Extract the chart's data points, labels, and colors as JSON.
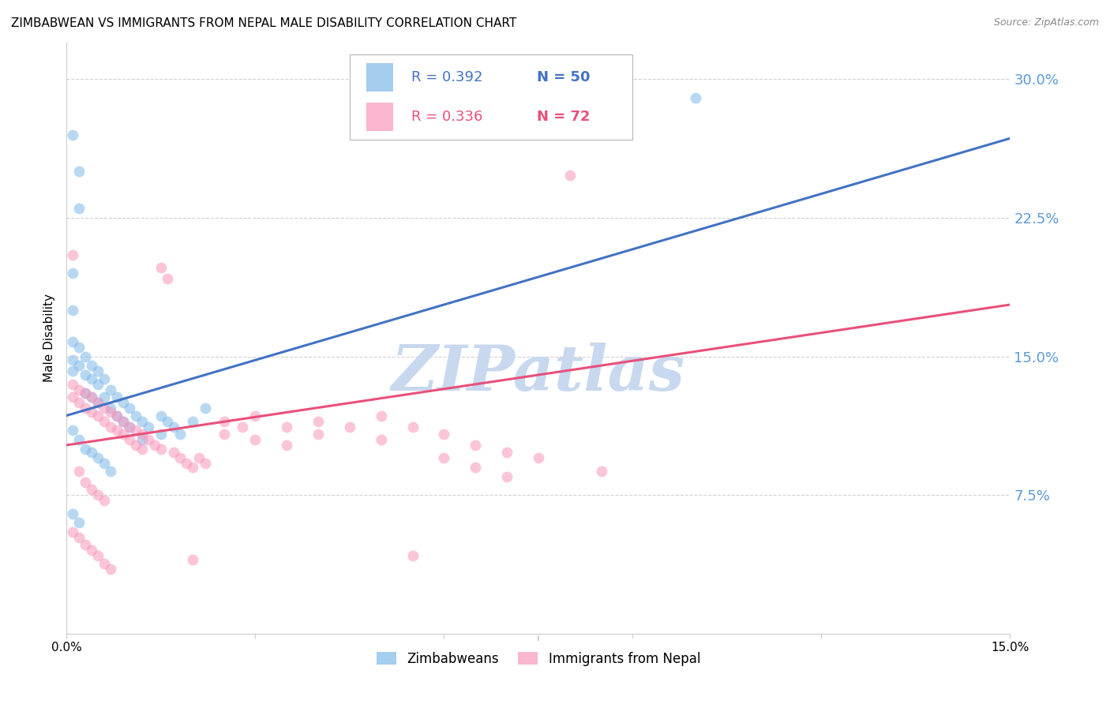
{
  "title": "ZIMBABWEAN VS IMMIGRANTS FROM NEPAL MALE DISABILITY CORRELATION CHART",
  "source": "Source: ZipAtlas.com",
  "ylabel": "Male Disability",
  "ytick_labels": [
    "7.5%",
    "15.0%",
    "22.5%",
    "30.0%"
  ],
  "ytick_values": [
    0.075,
    0.15,
    0.225,
    0.3
  ],
  "xlim": [
    0.0,
    0.15
  ],
  "ylim": [
    0.0,
    0.32
  ],
  "legend_blue_r": "R = 0.392",
  "legend_blue_n": "N = 50",
  "legend_pink_r": "R = 0.336",
  "legend_pink_n": "N = 72",
  "legend_label_blue": "Zimbabweans",
  "legend_label_pink": "Immigrants from Nepal",
  "blue_color": "#7fb8e8",
  "pink_color": "#f896bb",
  "line_blue_color": "#4472c4",
  "line_pink_color": "#e8507a",
  "watermark": "ZIPatlas",
  "blue_scatter": [
    [
      0.001,
      0.27
    ],
    [
      0.002,
      0.25
    ],
    [
      0.002,
      0.23
    ],
    [
      0.001,
      0.195
    ],
    [
      0.001,
      0.175
    ],
    [
      0.001,
      0.158
    ],
    [
      0.001,
      0.148
    ],
    [
      0.001,
      0.142
    ],
    [
      0.002,
      0.155
    ],
    [
      0.002,
      0.145
    ],
    [
      0.003,
      0.15
    ],
    [
      0.003,
      0.14
    ],
    [
      0.003,
      0.13
    ],
    [
      0.004,
      0.145
    ],
    [
      0.004,
      0.138
    ],
    [
      0.004,
      0.128
    ],
    [
      0.005,
      0.142
    ],
    [
      0.005,
      0.135
    ],
    [
      0.005,
      0.125
    ],
    [
      0.006,
      0.138
    ],
    [
      0.006,
      0.128
    ],
    [
      0.007,
      0.132
    ],
    [
      0.007,
      0.122
    ],
    [
      0.008,
      0.128
    ],
    [
      0.008,
      0.118
    ],
    [
      0.009,
      0.125
    ],
    [
      0.009,
      0.115
    ],
    [
      0.01,
      0.122
    ],
    [
      0.01,
      0.112
    ],
    [
      0.011,
      0.118
    ],
    [
      0.012,
      0.115
    ],
    [
      0.012,
      0.105
    ],
    [
      0.013,
      0.112
    ],
    [
      0.015,
      0.118
    ],
    [
      0.015,
      0.108
    ],
    [
      0.016,
      0.115
    ],
    [
      0.017,
      0.112
    ],
    [
      0.018,
      0.108
    ],
    [
      0.02,
      0.115
    ],
    [
      0.022,
      0.122
    ],
    [
      0.001,
      0.11
    ],
    [
      0.002,
      0.105
    ],
    [
      0.003,
      0.1
    ],
    [
      0.004,
      0.098
    ],
    [
      0.005,
      0.095
    ],
    [
      0.006,
      0.092
    ],
    [
      0.007,
      0.088
    ],
    [
      0.001,
      0.065
    ],
    [
      0.002,
      0.06
    ],
    [
      0.1,
      0.29
    ]
  ],
  "pink_scatter": [
    [
      0.001,
      0.135
    ],
    [
      0.001,
      0.128
    ],
    [
      0.002,
      0.132
    ],
    [
      0.002,
      0.125
    ],
    [
      0.003,
      0.13
    ],
    [
      0.003,
      0.122
    ],
    [
      0.004,
      0.128
    ],
    [
      0.004,
      0.12
    ],
    [
      0.005,
      0.125
    ],
    [
      0.005,
      0.118
    ],
    [
      0.006,
      0.122
    ],
    [
      0.006,
      0.115
    ],
    [
      0.007,
      0.12
    ],
    [
      0.007,
      0.112
    ],
    [
      0.008,
      0.118
    ],
    [
      0.008,
      0.11
    ],
    [
      0.009,
      0.115
    ],
    [
      0.009,
      0.108
    ],
    [
      0.01,
      0.112
    ],
    [
      0.01,
      0.105
    ],
    [
      0.011,
      0.11
    ],
    [
      0.011,
      0.102
    ],
    [
      0.012,
      0.108
    ],
    [
      0.012,
      0.1
    ],
    [
      0.013,
      0.105
    ],
    [
      0.014,
      0.102
    ],
    [
      0.015,
      0.1
    ],
    [
      0.015,
      0.198
    ],
    [
      0.016,
      0.192
    ],
    [
      0.001,
      0.205
    ],
    [
      0.017,
      0.098
    ],
    [
      0.018,
      0.095
    ],
    [
      0.019,
      0.092
    ],
    [
      0.02,
      0.09
    ],
    [
      0.021,
      0.095
    ],
    [
      0.022,
      0.092
    ],
    [
      0.025,
      0.115
    ],
    [
      0.025,
      0.108
    ],
    [
      0.028,
      0.112
    ],
    [
      0.03,
      0.118
    ],
    [
      0.03,
      0.105
    ],
    [
      0.035,
      0.112
    ],
    [
      0.035,
      0.102
    ],
    [
      0.04,
      0.115
    ],
    [
      0.04,
      0.108
    ],
    [
      0.045,
      0.112
    ],
    [
      0.05,
      0.118
    ],
    [
      0.05,
      0.105
    ],
    [
      0.055,
      0.112
    ],
    [
      0.06,
      0.108
    ],
    [
      0.06,
      0.095
    ],
    [
      0.065,
      0.102
    ],
    [
      0.065,
      0.09
    ],
    [
      0.07,
      0.098
    ],
    [
      0.07,
      0.085
    ],
    [
      0.075,
      0.095
    ],
    [
      0.08,
      0.248
    ],
    [
      0.085,
      0.088
    ],
    [
      0.002,
      0.088
    ],
    [
      0.003,
      0.082
    ],
    [
      0.004,
      0.078
    ],
    [
      0.005,
      0.075
    ],
    [
      0.006,
      0.072
    ],
    [
      0.055,
      0.042
    ],
    [
      0.02,
      0.04
    ],
    [
      0.001,
      0.055
    ],
    [
      0.002,
      0.052
    ],
    [
      0.003,
      0.048
    ],
    [
      0.004,
      0.045
    ],
    [
      0.005,
      0.042
    ],
    [
      0.006,
      0.038
    ],
    [
      0.007,
      0.035
    ]
  ],
  "blue_line_x": [
    0.0,
    0.15
  ],
  "blue_line_y": [
    0.118,
    0.268
  ],
  "pink_line_x": [
    0.0,
    0.15
  ],
  "pink_line_y": [
    0.102,
    0.178
  ],
  "background_color": "#ffffff",
  "grid_color": "#cccccc",
  "title_fontsize": 11,
  "axis_label_color": "#5b9bd5",
  "watermark_color": "#c8d8ee",
  "watermark_fontsize": 58
}
